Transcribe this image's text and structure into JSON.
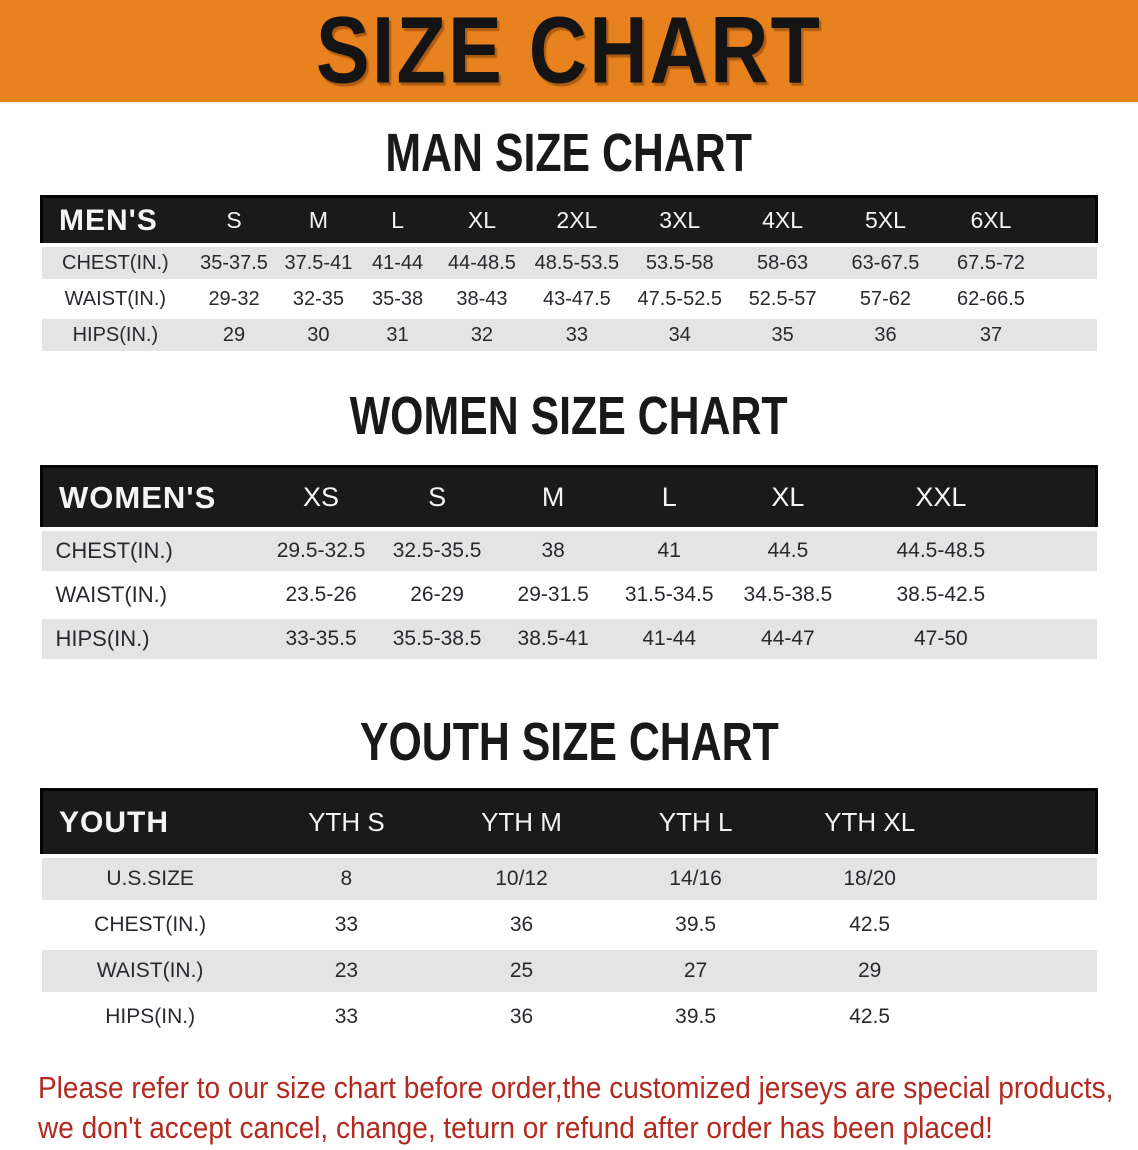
{
  "banner": {
    "title": "SIZE CHART"
  },
  "sections": [
    {
      "heading": "MAN SIZE CHART",
      "table": {
        "header": [
          "MEN'S",
          "S",
          "M",
          "L",
          "XL",
          "2XL",
          "3XL",
          "4XL",
          "5XL",
          "6XL"
        ],
        "rows": [
          [
            "CHEST(IN.)",
            "35-37.5",
            "37.5-41",
            "41-44",
            "44-48.5",
            "48.5-53.5",
            "53.5-58",
            "58-63",
            "63-67.5",
            "67.5-72"
          ],
          [
            "WAIST(IN.)",
            "29-32",
            "32-35",
            "35-38",
            "38-43",
            "43-47.5",
            "47.5-52.5",
            "52.5-57",
            "57-62",
            "62-66.5"
          ],
          [
            "HIPS(IN.)",
            "29",
            "30",
            "31",
            "32",
            "33",
            "34",
            "35",
            "36",
            "37"
          ]
        ]
      }
    },
    {
      "heading": "WOMEN SIZE CHART",
      "table": {
        "header": [
          "WOMEN'S",
          "XS",
          "S",
          "M",
          "L",
          "XL",
          "XXL"
        ],
        "rows": [
          [
            "CHEST(IN.)",
            "29.5-32.5",
            "32.5-35.5",
            "38",
            "41",
            "44.5",
            "44.5-48.5"
          ],
          [
            "WAIST(IN.)",
            "23.5-26",
            "26-29",
            "29-31.5",
            "31.5-34.5",
            "34.5-38.5",
            "38.5-42.5"
          ],
          [
            "HIPS(IN.)",
            "33-35.5",
            "35.5-38.5",
            "38.5-41",
            "41-44",
            "44-47",
            "47-50"
          ]
        ]
      }
    },
    {
      "heading": "YOUTH SIZE CHART",
      "table": {
        "header": [
          "YOUTH",
          "YTH S",
          "YTH M",
          "YTH L",
          "YTH XL"
        ],
        "rows": [
          [
            "U.S.SIZE",
            "8",
            "10/12",
            "14/16",
            "18/20"
          ],
          [
            "CHEST(IN.)",
            "33",
            "36",
            "39.5",
            "42.5"
          ],
          [
            "WAIST(IN.)",
            "23",
            "25",
            "27",
            "29"
          ],
          [
            "HIPS(IN.)",
            "33",
            "36",
            "39.5",
            "42.5"
          ]
        ]
      }
    }
  ],
  "disclaimer": {
    "line1": "Please refer to our size chart before order,the customized jerseys are special products,",
    "line2": "we don't accept cancel, change, teturn or refund after order has been placed!"
  },
  "colors": {
    "banner_orange": "#E8821E",
    "header_black": "#1A1A1A",
    "row_gray": "#E4E4E4",
    "disclaimer_red": "#B22A20"
  }
}
